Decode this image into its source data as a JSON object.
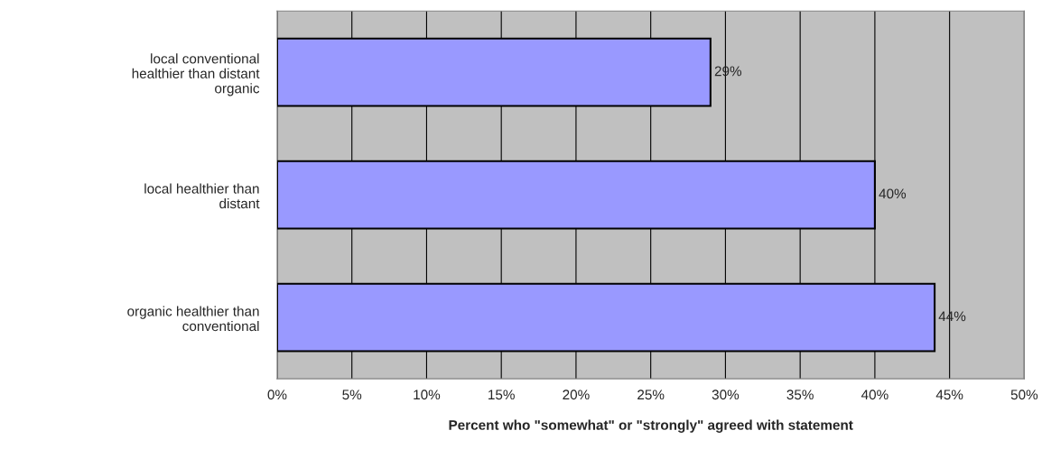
{
  "chart_data": {
    "type": "bar",
    "orientation": "horizontal",
    "xlabel": "Percent who \"somewhat\" or \"strongly\" agreed with statement",
    "categories": [
      "local conventional healthier than distant organic",
      "local healthier than distant",
      "organic healthier than conventional"
    ],
    "values": [
      29,
      40,
      44
    ],
    "value_labels": [
      "29%",
      "40%",
      "44%"
    ],
    "color": "#9999ff",
    "xlim": [
      0,
      50
    ],
    "xticks": [
      {
        "value": 0,
        "label": "0%"
      },
      {
        "value": 5,
        "label": "5%"
      },
      {
        "value": 10,
        "label": "10%"
      },
      {
        "value": 15,
        "label": "15%"
      },
      {
        "value": 20,
        "label": "20%"
      },
      {
        "value": 25,
        "label": "25%"
      },
      {
        "value": 30,
        "label": "30%"
      },
      {
        "value": 35,
        "label": "35%"
      },
      {
        "value": 40,
        "label": "40%"
      },
      {
        "value": 45,
        "label": "45%"
      },
      {
        "value": 50,
        "label": "50%"
      }
    ],
    "grid": "x"
  }
}
